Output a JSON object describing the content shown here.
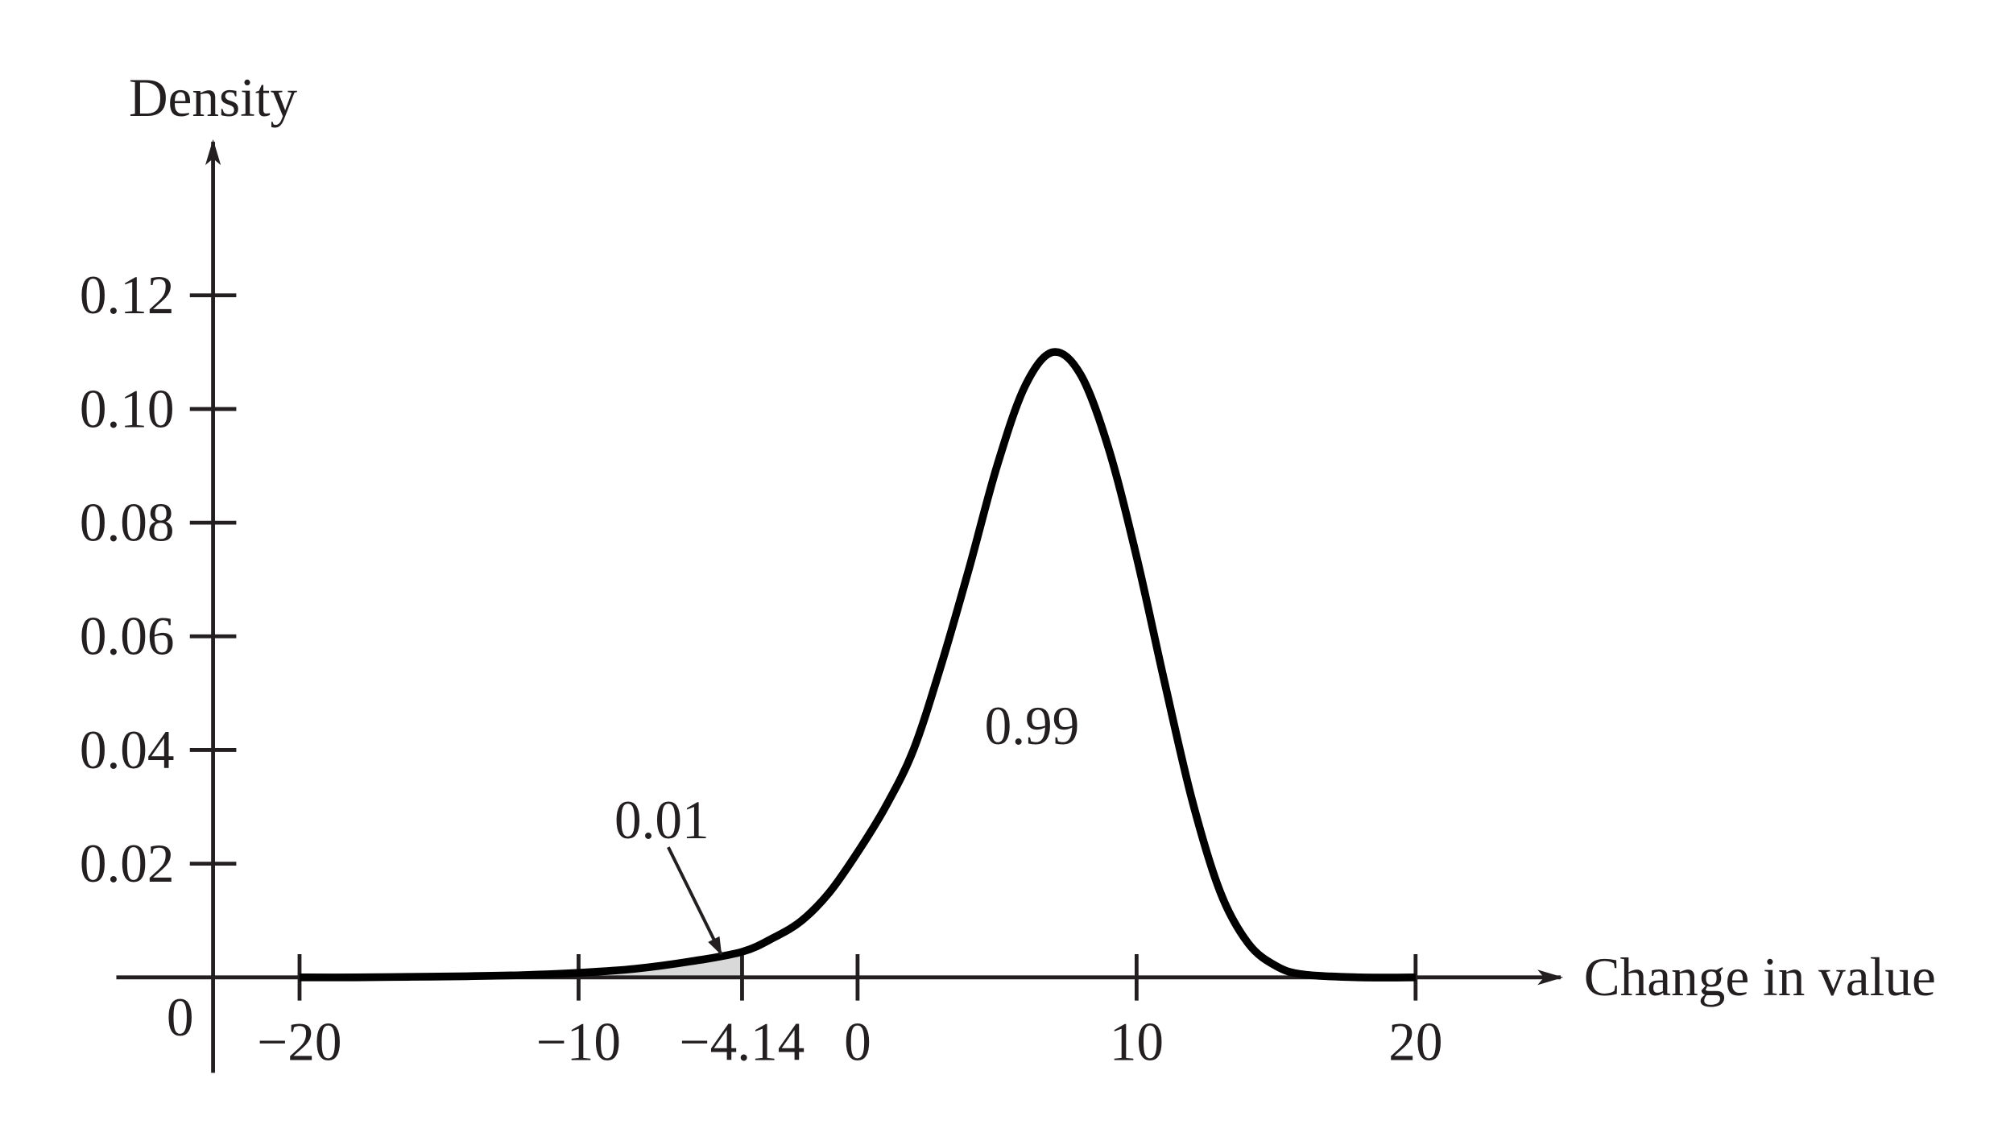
{
  "chart_data": {
    "type": "line",
    "ylabel": "Density",
    "xlabel": "Change in value",
    "x": [
      -20,
      -18,
      -16,
      -14,
      -12,
      -10,
      -8,
      -6,
      -4.14,
      -3,
      -2,
      -1,
      0,
      1,
      2,
      3,
      4,
      5,
      6,
      7,
      8,
      9,
      10,
      11,
      12,
      13,
      14,
      15,
      16,
      18,
      20
    ],
    "series": [
      {
        "color": "#000000",
        "values": [
          0,
          0,
          0.0001,
          0.0002,
          0.0004,
          0.0008,
          0.0015,
          0.0028,
          0.0045,
          0.007,
          0.01,
          0.015,
          0.022,
          0.03,
          0.04,
          0.055,
          0.072,
          0.09,
          0.104,
          0.11,
          0.106,
          0.093,
          0.074,
          0.052,
          0.031,
          0.015,
          0.006,
          0.002,
          0.0005,
          0,
          0
        ]
      }
    ],
    "shade_upper": -4.14,
    "shade_color": "#d9d9d9",
    "annotations": [
      "0.01",
      "0.99"
    ],
    "xlim": [
      -23.1,
      25.2
    ],
    "ylim": [
      0,
      0.147
    ],
    "xticks": [
      {
        "value": -20,
        "label": "−20"
      },
      {
        "value": -10,
        "label": "−10"
      },
      {
        "value": -4.14,
        "label": "−4.14"
      },
      0,
      10,
      20
    ],
    "yticks": [
      0,
      0.02,
      0.04,
      0.06,
      0.08,
      {
        "value": 0.1,
        "label": "0.10"
      },
      0.12
    ]
  }
}
